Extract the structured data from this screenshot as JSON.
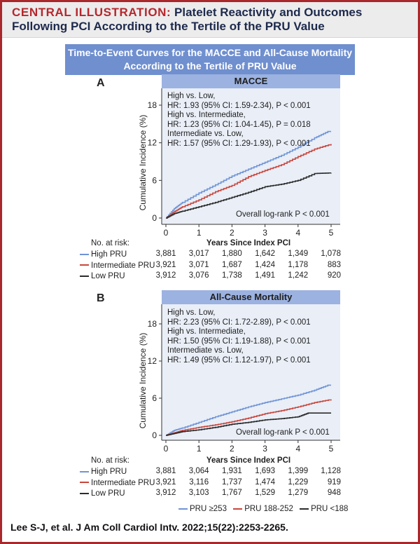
{
  "header": {
    "label": "CENTRAL ILLUSTRATION:",
    "title": "Platelet Reactivity and Outcomes Following PCI According to the Tertile of the PRU Value"
  },
  "subtitle_box": {
    "line1": "Time-to-Event Curves for the MACCE and All-Cause Mortality",
    "line2": "According to the Tertile of PRU Value"
  },
  "colors": {
    "high": "#6f94d6",
    "intermediate": "#c9463c",
    "low": "#2c2c2c",
    "frame": "#a8282c",
    "plot_bg": "#e9eef7",
    "panel_header": "#9cb2e0"
  },
  "legend": [
    "PRU ≥253",
    "PRU 188-252",
    "PRU <188"
  ],
  "citation": "Lee S-J, et al. J Am Coll Cardiol Intv. 2022;15(22):2253-2265.",
  "chart_data": [
    {
      "type": "line",
      "panel": "A",
      "title": "MACCE",
      "xlabel": "Years Since Index PCI",
      "ylabel": "Cumulative Incidence (%)",
      "xlim": [
        0,
        5
      ],
      "ylim": [
        0,
        18
      ],
      "xticks": [
        0,
        1,
        2,
        3,
        4,
        5
      ],
      "yticks": [
        0,
        6,
        12,
        18
      ],
      "grid": false,
      "annotations": [
        "High vs. Low,",
        "HR: 1.93 (95% CI: 1.59-2.34), P < 0.001",
        "High vs. Intermediate,",
        "HR: 1.23 (95% CI: 1.04-1.45), P = 0.018",
        "Intermediate vs. Low,",
        "HR: 1.57 (95% CI: 1.29-1.93), P < 0.001"
      ],
      "logrank": "Overall log-rank P < 0.001",
      "series": [
        {
          "name": "High PRU",
          "x": [
            0,
            0.25,
            0.5,
            1,
            1.5,
            2,
            2.5,
            3,
            3.5,
            4,
            4.5,
            4.9,
            5
          ],
          "y": [
            0,
            1.5,
            2.5,
            4.0,
            5.3,
            6.7,
            7.8,
            8.9,
            10.0,
            11.3,
            12.8,
            13.8,
            13.8
          ]
        },
        {
          "name": "Intermediate PRU",
          "x": [
            0,
            0.25,
            0.5,
            1,
            1.5,
            2,
            2.5,
            3,
            3.5,
            4,
            4.5,
            5
          ],
          "y": [
            0,
            1.0,
            1.8,
            2.9,
            4.2,
            5.2,
            6.6,
            7.6,
            8.5,
            9.8,
            11.0,
            11.8
          ]
        },
        {
          "name": "Low PRU",
          "x": [
            0,
            0.25,
            0.5,
            1,
            1.5,
            2,
            2.5,
            3,
            3.5,
            4,
            4.5,
            5
          ],
          "y": [
            0,
            0.7,
            1.1,
            1.8,
            2.5,
            3.3,
            4.1,
            5.0,
            5.4,
            6.0,
            7.1,
            7.2
          ]
        }
      ],
      "risk_table": {
        "title": "No. at risk:",
        "rows": [
          {
            "label": "High PRU",
            "values": [
              "3,881",
              "3,017",
              "1,880",
              "1,642",
              "1,349",
              "1,078"
            ]
          },
          {
            "label": "Intermediate PRU",
            "values": [
              "3,921",
              "3,071",
              "1,687",
              "1,424",
              "1,178",
              "883"
            ]
          },
          {
            "label": "Low PRU",
            "values": [
              "3,912",
              "3,076",
              "1,738",
              "1,491",
              "1,242",
              "920"
            ]
          }
        ]
      }
    },
    {
      "type": "line",
      "panel": "B",
      "title": "All-Cause Mortality",
      "xlabel": "Years Since Index PCI",
      "ylabel": "Cumulative Incidence (%)",
      "xlim": [
        0,
        5
      ],
      "ylim": [
        0,
        18
      ],
      "xticks": [
        0,
        1,
        2,
        3,
        4,
        5
      ],
      "yticks": [
        0,
        6,
        12,
        18
      ],
      "grid": false,
      "annotations": [
        "High vs. Low,",
        "HR: 2.23 (95% CI: 1.72-2.89), P < 0.001",
        "High vs. Intermediate,",
        "HR: 1.50 (95% CI: 1.19-1.88), P < 0.001",
        "Intermediate vs. Low,",
        "HR: 1.49 (95% CI: 1.12-1.97), P < 0.001"
      ],
      "logrank": "Overall log-rank P < 0.001",
      "series": [
        {
          "name": "High PRU",
          "x": [
            0,
            0.25,
            0.5,
            1,
            1.5,
            2,
            2.5,
            3,
            3.5,
            4,
            4.5,
            4.9,
            5
          ],
          "y": [
            0,
            0.8,
            1.2,
            2.1,
            3.0,
            3.8,
            4.6,
            5.3,
            5.9,
            6.5,
            7.3,
            8.1,
            8.1
          ]
        },
        {
          "name": "Intermediate PRU",
          "x": [
            0,
            0.25,
            0.5,
            1,
            1.5,
            2,
            2.5,
            3,
            3.5,
            4,
            4.5,
            5
          ],
          "y": [
            0,
            0.4,
            0.8,
            1.3,
            1.7,
            2.2,
            2.8,
            3.5,
            4.0,
            4.6,
            5.3,
            5.8
          ]
        },
        {
          "name": "Low PRU",
          "x": [
            0,
            0.25,
            0.5,
            1,
            1.5,
            2,
            2.5,
            3,
            3.5,
            4,
            4.3,
            5
          ],
          "y": [
            0,
            0.3,
            0.6,
            0.9,
            1.3,
            1.8,
            2.1,
            2.5,
            2.7,
            3.0,
            3.6,
            3.6
          ]
        }
      ],
      "risk_table": {
        "title": "No. at risk:",
        "rows": [
          {
            "label": "High PRU",
            "values": [
              "3,881",
              "3,064",
              "1,931",
              "1,693",
              "1,399",
              "1,128"
            ]
          },
          {
            "label": "Intermediate PRU",
            "values": [
              "3,921",
              "3,116",
              "1,737",
              "1,474",
              "1,229",
              "919"
            ]
          },
          {
            "label": "Low PRU",
            "values": [
              "3,912",
              "3,103",
              "1,767",
              "1,529",
              "1,279",
              "948"
            ]
          }
        ]
      }
    }
  ]
}
